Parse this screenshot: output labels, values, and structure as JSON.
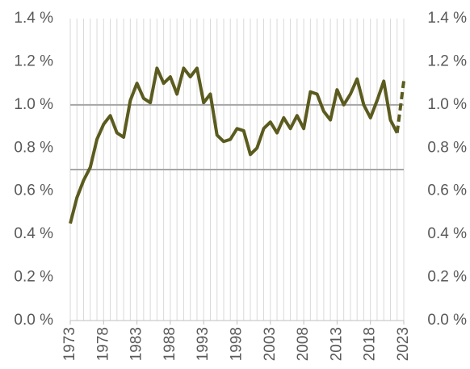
{
  "chart_data": {
    "type": "line",
    "x": [
      1973,
      1974,
      1975,
      1976,
      1977,
      1978,
      1979,
      1980,
      1981,
      1982,
      1983,
      1984,
      1985,
      1986,
      1987,
      1988,
      1989,
      1990,
      1991,
      1992,
      1993,
      1994,
      1995,
      1996,
      1997,
      1998,
      1999,
      2000,
      2001,
      2002,
      2003,
      2004,
      2005,
      2006,
      2007,
      2008,
      2009,
      2010,
      2011,
      2012,
      2013,
      2014,
      2015,
      2016,
      2017,
      2018,
      2019,
      2020,
      2021,
      2022,
      2023
    ],
    "series": [
      {
        "color": "#5b5b1f",
        "dashed": false,
        "values": [
          0.45,
          0.57,
          0.65,
          0.71,
          0.84,
          0.91,
          0.95,
          0.87,
          0.85,
          1.02,
          1.1,
          1.03,
          1.01,
          1.17,
          1.1,
          1.13,
          1.05,
          1.17,
          1.13,
          1.17,
          1.01,
          1.05,
          0.86,
          0.83,
          0.84,
          0.89,
          0.88,
          0.77,
          0.8,
          0.89,
          0.92,
          0.87,
          0.94,
          0.89,
          0.95,
          0.89,
          1.06,
          1.05,
          0.97,
          0.93,
          1.07,
          1.0,
          1.05,
          1.12,
          1.0,
          0.94,
          1.02,
          1.11,
          0.93,
          0.87,
          null
        ]
      },
      {
        "color": "#5b5b1f",
        "dashed": true,
        "values": [
          null,
          null,
          null,
          null,
          null,
          null,
          null,
          null,
          null,
          null,
          null,
          null,
          null,
          null,
          null,
          null,
          null,
          null,
          null,
          null,
          null,
          null,
          null,
          null,
          null,
          null,
          null,
          null,
          null,
          null,
          null,
          null,
          null,
          null,
          null,
          null,
          null,
          null,
          null,
          null,
          null,
          null,
          null,
          null,
          null,
          null,
          null,
          null,
          null,
          0.87,
          1.11
        ]
      }
    ],
    "reference_lines": [
      1.0,
      0.7
    ],
    "xlim": [
      1973,
      2023
    ],
    "xticks": [
      1973,
      1978,
      1983,
      1988,
      1993,
      1998,
      2003,
      2008,
      2013,
      2018,
      2023
    ],
    "ylim": [
      0,
      1.4
    ],
    "yticks": [
      {
        "value": 0,
        "label": "0.0 %"
      },
      {
        "value": 0.2,
        "label": "0.2 %"
      },
      {
        "value": 0.4,
        "label": "0.4 %"
      },
      {
        "value": 0.6,
        "label": "0.6 %"
      },
      {
        "value": 0.8,
        "label": "0.8 %"
      },
      {
        "value": 1.0,
        "label": "1.0 %"
      },
      {
        "value": 1.2,
        "label": "1.2 %"
      },
      {
        "value": 1.4,
        "label": "1.4 %"
      }
    ],
    "y2lim": [
      0,
      1.4
    ],
    "y2ticks": [
      {
        "value": 0,
        "label": "0.0 %"
      },
      {
        "value": 0.2,
        "label": "0.2 %"
      },
      {
        "value": 0.4,
        "label": "0.4 %"
      },
      {
        "value": 0.6,
        "label": "0.6 %"
      },
      {
        "value": 0.8,
        "label": "0.8 %"
      },
      {
        "value": 1.0,
        "label": "1.0 %"
      },
      {
        "value": 1.2,
        "label": "1.2 %"
      },
      {
        "value": 1.4,
        "label": "1.4 %"
      }
    ],
    "grid": true
  }
}
